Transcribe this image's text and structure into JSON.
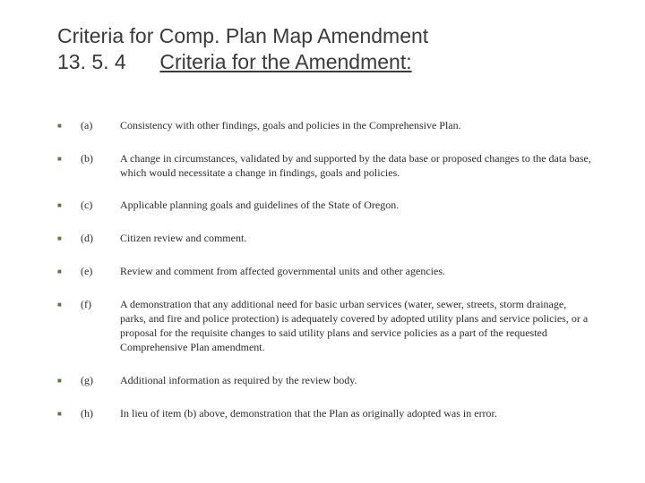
{
  "title": {
    "line1": "Criteria for Comp. Plan Map Amendment",
    "section_number": "13. 5. 4",
    "line2_rest": "Criteria for the Amendment:"
  },
  "colors": {
    "bullet": "#5a7a3a",
    "text": "#2b2b2b",
    "title": "#3a3a3a",
    "background": "#ffffff"
  },
  "fonts": {
    "title_family": "Verdana",
    "title_size_pt": 17,
    "body_family": "Times New Roman",
    "body_size_pt": 9
  },
  "criteria": [
    {
      "label": "(a)",
      "text": "Consistency with other findings, goals and policies in the Comprehensive Plan."
    },
    {
      "label": "(b)",
      "text": "A change in circumstances, validated by and supported by the data base or proposed changes to the data base, which would necessitate a change in findings, goals and policies."
    },
    {
      "label": "(c)",
      "text": "Applicable planning goals and guidelines of the State of Oregon."
    },
    {
      "label": "(d)",
      "text": "Citizen review and comment."
    },
    {
      "label": "(e)",
      "text": "Review and comment from affected governmental units and other agencies."
    },
    {
      "label": "(f)",
      "text": "A demonstration that any additional need for basic urban services (water, sewer, streets, storm drainage, parks, and fire and police protection) is adequately covered by adopted utility plans and service policies, or a proposal for the requisite changes to said utility plans and service policies as a part of the requested Comprehensive Plan amendment."
    },
    {
      "label": "(g)",
      "text": "Additional information as required by the review body."
    },
    {
      "label": "(h)",
      "text": "In lieu of item (b) above, demonstration that the Plan as originally adopted was in error."
    }
  ]
}
